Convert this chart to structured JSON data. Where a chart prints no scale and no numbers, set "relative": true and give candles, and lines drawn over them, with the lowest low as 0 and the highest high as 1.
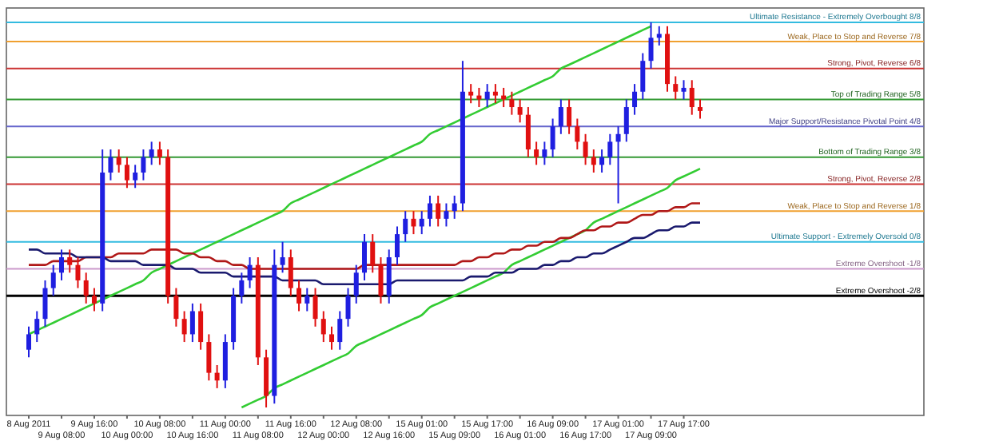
{
  "chart_data": {
    "type": "candlestick",
    "relative": true,
    "categories": [
      "8 Aug 2011",
      null,
      null,
      null,
      "9 Aug 08:00",
      null,
      null,
      null,
      "9 Aug 16:00",
      null,
      null,
      null,
      "10 Aug 00:00",
      null,
      null,
      null,
      "10 Aug 08:00",
      null,
      null,
      null,
      "10 Aug 16:00",
      null,
      null,
      null,
      "11 Aug 00:00",
      null,
      null,
      null,
      "11 Aug 08:00",
      null,
      null,
      null,
      "11 Aug 16:00",
      null,
      null,
      null,
      "12 Aug 00:00",
      null,
      null,
      null,
      "12 Aug 08:00",
      null,
      null,
      null,
      "12 Aug 16:00",
      null,
      null,
      null,
      "15 Aug 01:00",
      null,
      null,
      null,
      "15 Aug 09:00",
      null,
      null,
      null,
      "15 Aug 17:00",
      null,
      null,
      null,
      "16 Aug 01:00",
      null,
      null,
      null,
      "16 Aug 09:00",
      null,
      null,
      null,
      "16 Aug 17:00",
      null,
      null,
      null,
      "17 Aug 01:00",
      null,
      null,
      null,
      "17 Aug 09:00",
      null,
      null,
      null,
      "17 Aug 17:00",
      null,
      null
    ],
    "ohlc": [
      [
        0.15,
        0.21,
        0.13,
        0.19
      ],
      [
        0.19,
        0.25,
        0.17,
        0.23
      ],
      [
        0.23,
        0.33,
        0.21,
        0.31
      ],
      [
        0.31,
        0.37,
        0.29,
        0.35
      ],
      [
        0.35,
        0.41,
        0.33,
        0.39
      ],
      [
        0.39,
        0.41,
        0.35,
        0.37
      ],
      [
        0.37,
        0.39,
        0.31,
        0.33
      ],
      [
        0.33,
        0.35,
        0.27,
        0.29
      ],
      [
        0.29,
        0.31,
        0.25,
        0.27
      ],
      [
        0.27,
        0.67,
        0.25,
        0.61
      ],
      [
        0.61,
        0.67,
        0.59,
        0.65
      ],
      [
        0.65,
        0.67,
        0.61,
        0.63
      ],
      [
        0.63,
        0.65,
        0.57,
        0.59
      ],
      [
        0.59,
        0.63,
        0.57,
        0.61
      ],
      [
        0.61,
        0.67,
        0.59,
        0.65
      ],
      [
        0.65,
        0.69,
        0.63,
        0.67
      ],
      [
        0.67,
        0.69,
        0.63,
        0.65
      ],
      [
        0.65,
        0.67,
        0.27,
        0.29
      ],
      [
        0.29,
        0.31,
        0.21,
        0.23
      ],
      [
        0.23,
        0.25,
        0.17,
        0.19
      ],
      [
        0.19,
        0.27,
        0.17,
        0.25
      ],
      [
        0.25,
        0.27,
        0.15,
        0.17
      ],
      [
        0.17,
        0.19,
        0.07,
        0.09
      ],
      [
        0.09,
        0.11,
        0.05,
        0.07
      ],
      [
        0.07,
        0.19,
        0.05,
        0.17
      ],
      [
        0.17,
        0.31,
        0.15,
        0.29
      ],
      [
        0.29,
        0.35,
        0.27,
        0.33
      ],
      [
        0.33,
        0.39,
        0.31,
        0.37
      ],
      [
        0.37,
        0.39,
        0.11,
        0.13
      ],
      [
        0.13,
        0.15,
        0,
        0.03
      ],
      [
        0.03,
        0.41,
        0.01,
        0.37
      ],
      [
        0.37,
        0.43,
        0.35,
        0.39
      ],
      [
        0.39,
        0.41,
        0.29,
        0.31
      ],
      [
        0.31,
        0.33,
        0.25,
        0.27
      ],
      [
        0.27,
        0.31,
        0.25,
        0.29
      ],
      [
        0.29,
        0.31,
        0.21,
        0.23
      ],
      [
        0.23,
        0.25,
        0.17,
        0.19
      ],
      [
        0.19,
        0.21,
        0.15,
        0.17
      ],
      [
        0.17,
        0.25,
        0.15,
        0.23
      ],
      [
        0.23,
        0.31,
        0.21,
        0.29
      ],
      [
        0.29,
        0.37,
        0.27,
        0.35
      ],
      [
        0.35,
        0.45,
        0.33,
        0.43
      ],
      [
        0.43,
        0.45,
        0.35,
        0.37
      ],
      [
        0.37,
        0.39,
        0.27,
        0.29
      ],
      [
        0.29,
        0.41,
        0.27,
        0.39
      ],
      [
        0.39,
        0.47,
        0.37,
        0.45
      ],
      [
        0.45,
        0.51,
        0.43,
        0.49
      ],
      [
        0.49,
        0.51,
        0.45,
        0.47
      ],
      [
        0.47,
        0.51,
        0.45,
        0.49
      ],
      [
        0.49,
        0.55,
        0.47,
        0.53
      ],
      [
        0.53,
        0.55,
        0.47,
        0.49
      ],
      [
        0.49,
        0.53,
        0.47,
        0.51
      ],
      [
        0.51,
        0.55,
        0.49,
        0.53
      ],
      [
        0.53,
        0.9,
        0.51,
        0.82
      ],
      [
        0.82,
        0.84,
        0.79,
        0.81
      ],
      [
        0.81,
        0.83,
        0.78,
        0.8
      ],
      [
        0.8,
        0.84,
        0.78,
        0.82
      ],
      [
        0.82,
        0.84,
        0.79,
        0.81
      ],
      [
        0.81,
        0.83,
        0.78,
        0.8
      ],
      [
        0.8,
        0.82,
        0.76,
        0.78
      ],
      [
        0.78,
        0.8,
        0.74,
        0.76
      ],
      [
        0.76,
        0.78,
        0.65,
        0.67
      ],
      [
        0.67,
        0.69,
        0.63,
        0.65
      ],
      [
        0.65,
        0.69,
        0.63,
        0.67
      ],
      [
        0.67,
        0.75,
        0.65,
        0.73
      ],
      [
        0.73,
        0.8,
        0.71,
        0.78
      ],
      [
        0.78,
        0.8,
        0.71,
        0.73
      ],
      [
        0.73,
        0.75,
        0.67,
        0.69
      ],
      [
        0.69,
        0.71,
        0.63,
        0.65
      ],
      [
        0.65,
        0.67,
        0.61,
        0.63
      ],
      [
        0.63,
        0.67,
        0.61,
        0.65
      ],
      [
        0.65,
        0.71,
        0.63,
        0.69
      ],
      [
        0.69,
        0.73,
        0.53,
        0.71
      ],
      [
        0.71,
        0.8,
        0.69,
        0.78
      ],
      [
        0.78,
        0.84,
        0.76,
        0.82
      ],
      [
        0.82,
        0.92,
        0.8,
        0.9
      ],
      [
        0.9,
        1,
        0.88,
        0.96
      ],
      [
        0.96,
        0.99,
        0.94,
        0.97
      ],
      [
        0.97,
        0.99,
        0.82,
        0.84
      ],
      [
        0.84,
        0.86,
        0.8,
        0.82
      ],
      [
        0.82,
        0.85,
        0.8,
        0.83
      ],
      [
        0.83,
        0.85,
        0.76,
        0.78
      ],
      [
        0.78,
        0.8,
        0.75,
        0.77
      ]
    ],
    "colors": [
      "#1f1fe0",
      "#1f1fe0",
      "#1f1fe0",
      "#1f1fe0",
      "#1f1fe0",
      "#e01010",
      "#e01010",
      "#e01010",
      "#e01010",
      "#1f1fe0",
      "#1f1fe0",
      "#e01010",
      "#e01010",
      "#1f1fe0",
      "#1f1fe0",
      "#1f1fe0",
      "#e01010",
      "#e01010",
      "#e01010",
      "#e01010",
      "#1f1fe0",
      "#e01010",
      "#e01010",
      "#e01010",
      "#1f1fe0",
      "#1f1fe0",
      "#1f1fe0",
      "#1f1fe0",
      "#e01010",
      "#e01010",
      "#1f1fe0",
      "#1f1fe0",
      "#e01010",
      "#e01010",
      "#1f1fe0",
      "#e01010",
      "#e01010",
      "#e01010",
      "#1f1fe0",
      "#1f1fe0",
      "#1f1fe0",
      "#1f1fe0",
      "#e01010",
      "#e01010",
      "#1f1fe0",
      "#1f1fe0",
      "#1f1fe0",
      "#e01010",
      "#1f1fe0",
      "#1f1fe0",
      "#e01010",
      "#1f1fe0",
      "#1f1fe0",
      "#1f1fe0",
      "#e01010",
      "#e01010",
      "#1f1fe0",
      "#e01010",
      "#e01010",
      "#e01010",
      "#e01010",
      "#e01010",
      "#e01010",
      "#1f1fe0",
      "#1f1fe0",
      "#1f1fe0",
      "#e01010",
      "#e01010",
      "#e01010",
      "#e01010",
      "#1f1fe0",
      "#1f1fe0",
      "#1f1fe0",
      "#1f1fe0",
      "#1f1fe0",
      "#1f1fe0",
      "#1f1fe0",
      "#1f1fe0",
      "#e01010",
      "#e01010",
      "#1f1fe0",
      "#e01010",
      "#e01010"
    ],
    "series": [
      {
        "type": "line",
        "color": "#33cc33",
        "values": [
          0.19,
          0.2,
          0.21,
          0.22,
          0.23,
          0.24,
          0.25,
          0.26,
          0.27,
          0.28,
          0.29,
          0.3,
          0.31,
          0.32,
          0.33,
          0.35,
          0.36,
          0.37,
          0.38,
          0.39,
          0.4,
          0.41,
          0.42,
          0.43,
          0.44,
          0.45,
          0.46,
          0.47,
          0.48,
          0.49,
          0.5,
          0.51,
          0.53,
          0.54,
          0.55,
          0.56,
          0.57,
          0.58,
          0.59,
          0.6,
          0.61,
          0.62,
          0.63,
          0.64,
          0.65,
          0.66,
          0.67,
          0.68,
          0.69,
          0.71,
          0.72,
          0.73,
          0.74,
          0.75,
          0.76,
          0.77,
          0.78,
          0.79,
          0.8,
          0.81,
          0.82,
          0.83,
          0.84,
          0.85,
          0.86,
          0.88,
          0.89,
          0.9,
          0.91,
          0.92,
          0.93,
          0.94,
          0.95,
          0.96,
          0.97,
          0.98,
          0.99,
          null,
          null,
          null,
          null,
          null,
          null
        ]
      },
      {
        "type": "line",
        "color": "#33cc33",
        "values": [
          null,
          null,
          null,
          null,
          null,
          null,
          null,
          null,
          null,
          null,
          null,
          null,
          null,
          null,
          null,
          null,
          null,
          null,
          null,
          null,
          null,
          null,
          null,
          null,
          null,
          null,
          0,
          0.01,
          0.02,
          0.03,
          0.05,
          0.06,
          0.07,
          0.08,
          0.09,
          0.1,
          0.11,
          0.12,
          0.13,
          0.14,
          0.16,
          0.17,
          0.18,
          0.19,
          0.2,
          0.21,
          0.22,
          0.23,
          0.24,
          0.26,
          0.27,
          0.28,
          0.29,
          0.3,
          0.31,
          0.32,
          0.33,
          0.34,
          0.35,
          0.37,
          0.38,
          0.39,
          0.4,
          0.41,
          0.42,
          0.43,
          0.44,
          0.45,
          0.46,
          0.48,
          0.49,
          0.5,
          0.51,
          0.52,
          0.53,
          0.54,
          0.55,
          0.56,
          0.57,
          0.59,
          0.6,
          0.61,
          0.62
        ]
      },
      {
        "type": "line",
        "color": "#b01818",
        "values": [
          0.37,
          0.37,
          0.37,
          0.38,
          0.38,
          0.38,
          0.38,
          0.39,
          0.39,
          0.39,
          0.39,
          0.4,
          0.4,
          0.4,
          0.4,
          0.41,
          0.41,
          0.41,
          0.41,
          0.4,
          0.4,
          0.39,
          0.39,
          0.38,
          0.38,
          0.37,
          0.37,
          0.36,
          0.36,
          0.36,
          0.36,
          0.36,
          0.36,
          0.36,
          0.36,
          0.36,
          0.36,
          0.36,
          0.36,
          0.36,
          0.36,
          0.37,
          0.37,
          0.37,
          0.37,
          0.37,
          0.37,
          0.37,
          0.37,
          0.37,
          0.37,
          0.37,
          0.37,
          0.38,
          0.38,
          0.39,
          0.39,
          0.4,
          0.4,
          0.41,
          0.41,
          0.42,
          0.42,
          0.43,
          0.43,
          0.44,
          0.44,
          0.45,
          0.46,
          0.46,
          0.47,
          0.47,
          0.48,
          0.48,
          0.49,
          0.5,
          0.5,
          0.51,
          0.51,
          0.52,
          0.52,
          0.53,
          0.53
        ]
      },
      {
        "type": "line",
        "color": "#1a1a6e",
        "values": [
          0.41,
          0.41,
          0.4,
          0.4,
          0.4,
          0.4,
          0.39,
          0.39,
          0.39,
          0.39,
          0.38,
          0.38,
          0.38,
          0.38,
          0.37,
          0.37,
          0.37,
          0.37,
          0.36,
          0.36,
          0.36,
          0.35,
          0.35,
          0.35,
          0.35,
          0.34,
          0.34,
          0.34,
          0.34,
          0.34,
          0.34,
          0.33,
          0.33,
          0.33,
          0.33,
          0.33,
          0.32,
          0.32,
          0.32,
          0.32,
          0.32,
          0.32,
          0.32,
          0.32,
          0.32,
          0.33,
          0.33,
          0.33,
          0.33,
          0.33,
          0.33,
          0.33,
          0.33,
          0.33,
          0.34,
          0.34,
          0.34,
          0.35,
          0.35,
          0.35,
          0.36,
          0.36,
          0.36,
          0.37,
          0.37,
          0.38,
          0.38,
          0.39,
          0.39,
          0.4,
          0.4,
          0.41,
          0.42,
          0.43,
          0.44,
          0.44,
          0.45,
          0.46,
          0.46,
          0.47,
          0.47,
          0.48,
          0.48
        ]
      }
    ],
    "ref_lines": [
      {
        "axis": "y",
        "value": 1.0,
        "label": "Ultimate Resistance - Extremely Overbought 8/8",
        "color": "#33bbe0"
      },
      {
        "axis": "y",
        "value": 0.95,
        "label": "Weak, Place to Stop and Reverse 7/8",
        "color": "#f0a030"
      },
      {
        "axis": "y",
        "value": 0.88,
        "label": "Strong, Pivot, Reverse 6/8",
        "color": "#cc3333"
      },
      {
        "axis": "y",
        "value": 0.8,
        "label": "Top of Trading Range 5/8",
        "color": "#339933"
      },
      {
        "axis": "y",
        "value": 0.73,
        "label": "Major Support/Resistance Pivotal Point 4/8",
        "color": "#6666cc"
      },
      {
        "axis": "y",
        "value": 0.65,
        "label": "Bottom of Trading Range 3/8",
        "color": "#339933"
      },
      {
        "axis": "y",
        "value": 0.58,
        "label": "Strong, Pivot, Reverse 2/8",
        "color": "#cc3333"
      },
      {
        "axis": "y",
        "value": 0.51,
        "label": "Weak, Place to Stop and Reverse 1/8",
        "color": "#f0a030"
      },
      {
        "axis": "y",
        "value": 0.43,
        "label": "Ultimate Support - Extremely Oversold 0/8",
        "color": "#33bbe0"
      },
      {
        "axis": "y",
        "value": 0.36,
        "label": "Extreme Overshoot -1/8",
        "color": "#cc99cc"
      },
      {
        "axis": "y",
        "value": 0.29,
        "label": "Extreme Overshoot -2/8",
        "color": "#000000"
      }
    ]
  }
}
